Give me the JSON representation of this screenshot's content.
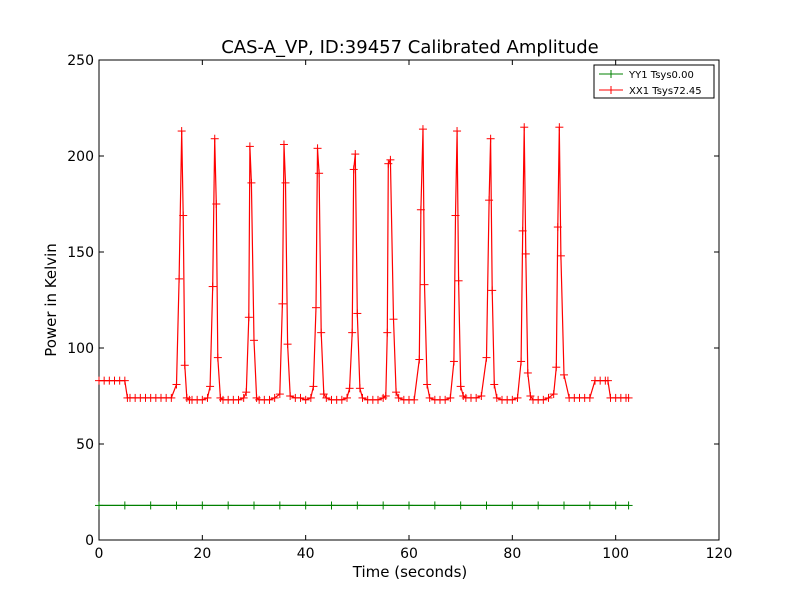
{
  "chart_data": {
    "type": "line",
    "title": "CAS-A_VP, ID:39457 Calibrated Amplitude",
    "xlabel": "Time (seconds)",
    "ylabel": "Power in Kelvin",
    "xlim": [
      0,
      120
    ],
    "ylim": [
      0,
      250
    ],
    "xticks": [
      0,
      20,
      40,
      60,
      80,
      100,
      120
    ],
    "yticks": [
      0,
      50,
      100,
      150,
      200,
      250
    ],
    "xtick_labels": [
      "0",
      "20",
      "40",
      "60",
      "80",
      "100",
      "120"
    ],
    "ytick_labels": [
      "0",
      "50",
      "100",
      "150",
      "200",
      "250"
    ],
    "grid": false,
    "legend_position": "top-right",
    "marker": "+",
    "series": [
      {
        "name": "YY1 Tsys0.00",
        "color": "#008000",
        "x": [
          0,
          5,
          10,
          15,
          20,
          25,
          30,
          35,
          40,
          45,
          50,
          55,
          60,
          65,
          70,
          75,
          80,
          85,
          90,
          95,
          100,
          102.5
        ],
        "y": [
          18,
          18,
          18,
          18,
          18,
          18,
          18,
          18,
          18,
          18,
          18,
          18,
          18,
          18,
          18,
          18,
          18,
          18,
          18,
          18,
          18,
          18
        ]
      },
      {
        "name": "XX1 Tsys72.45",
        "color": "#ff0000",
        "x": [
          0,
          1,
          2,
          3,
          4,
          5,
          5.5,
          6,
          7,
          8,
          9,
          10,
          11,
          12,
          13,
          14,
          15,
          15.5,
          16,
          16.3,
          16.6,
          17,
          17.5,
          18,
          19,
          20,
          21,
          21.5,
          22,
          22.4,
          22.7,
          23,
          23.5,
          24,
          25,
          26,
          27,
          28,
          28.5,
          29,
          29.2,
          29.5,
          30,
          30.5,
          31,
          32,
          33,
          34,
          35,
          35.5,
          35.8,
          36.1,
          36.5,
          37,
          38,
          39,
          40,
          41,
          41.5,
          42,
          42.3,
          42.6,
          43,
          43.5,
          44,
          45,
          46,
          47,
          48,
          48.5,
          49,
          49.3,
          49.6,
          50,
          50.5,
          51,
          52,
          53,
          54,
          55,
          55.5,
          55.8,
          56,
          56.4,
          57,
          57.5,
          58,
          59,
          60,
          61,
          62,
          62.3,
          62.7,
          63,
          63.5,
          64,
          65,
          66,
          67,
          68,
          68.7,
          69,
          69.3,
          69.6,
          70,
          70.5,
          71,
          72,
          73,
          74,
          75,
          75.5,
          75.8,
          76.1,
          76.5,
          77,
          78,
          79,
          80,
          81,
          81.7,
          82,
          82.3,
          82.6,
          83,
          83.5,
          84,
          85,
          86,
          87,
          88,
          88.5,
          88.8,
          89.1,
          89.4,
          90,
          91,
          92,
          93,
          94,
          95,
          96,
          97,
          98,
          98.5,
          99,
          100,
          101,
          102,
          102.5
        ],
        "y": [
          83,
          83,
          83,
          83,
          83,
          83,
          74,
          74,
          74,
          74,
          74,
          74,
          74,
          74,
          74,
          74,
          81,
          136,
          213,
          169,
          91,
          74,
          73,
          73,
          73,
          73,
          74,
          80,
          132,
          209,
          175,
          95,
          74,
          73,
          73,
          73,
          73,
          74,
          77,
          116,
          205,
          186,
          104,
          74,
          73,
          73,
          73,
          74,
          76,
          123,
          206,
          186,
          102,
          75,
          74,
          74,
          73,
          74,
          80,
          121,
          204,
          191,
          108,
          76,
          74,
          73,
          73,
          73,
          74,
          79,
          108,
          193,
          201,
          118,
          79,
          74,
          73,
          73,
          73,
          74,
          75,
          108,
          196,
          198,
          115,
          77,
          74,
          73,
          73,
          73,
          94,
          172,
          214,
          133,
          81,
          74,
          73,
          73,
          73,
          74,
          93,
          169,
          213,
          135,
          80,
          75,
          74,
          74,
          74,
          75,
          95,
          177,
          209,
          130,
          81,
          74,
          73,
          73,
          73,
          74,
          93,
          161,
          215,
          149,
          87,
          75,
          73,
          73,
          73,
          74,
          76,
          90,
          163,
          215,
          148,
          86,
          74,
          74,
          74,
          74,
          74,
          83,
          83,
          83,
          83,
          74,
          74,
          74,
          74,
          74
        ]
      }
    ]
  }
}
